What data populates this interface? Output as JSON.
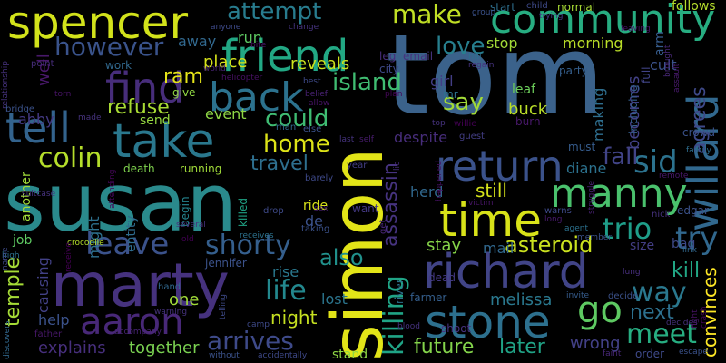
{
  "background": "#000000",
  "palette": {
    "yellow": "#d2e21b",
    "lime": "#a0da39",
    "green": "#4ac16d",
    "teal": "#1fa187",
    "cyan": "#277f8e",
    "blue": "#365c8d",
    "indigo": "#46327e",
    "purple": "#440154"
  },
  "words": [
    {
      "text": "tom",
      "color": "#3b628b"
    },
    {
      "text": "susan",
      "color": "#2a8a8c"
    },
    {
      "text": "simon",
      "color": "#e2e418"
    },
    {
      "text": "marty",
      "color": "#46327e"
    },
    {
      "text": "spencer",
      "color": "#d2e21b"
    },
    {
      "text": "community",
      "color": "#27ad81"
    },
    {
      "text": "friend",
      "color": "#22a884"
    },
    {
      "text": "take",
      "color": "#2a788e"
    },
    {
      "text": "back",
      "color": "#2c728e"
    },
    {
      "text": "richard",
      "color": "#414487"
    },
    {
      "text": "return",
      "color": "#3b528b"
    },
    {
      "text": "time",
      "color": "#d8e219"
    },
    {
      "text": "manny",
      "color": "#4ac16d"
    },
    {
      "text": "stone",
      "color": "#2d708e"
    },
    {
      "text": "willard",
      "color": "#31688e"
    },
    {
      "text": "find",
      "color": "#472d7b"
    },
    {
      "text": "tell",
      "color": "#33638d"
    },
    {
      "text": "aaron",
      "color": "#482878"
    },
    {
      "text": "go",
      "color": "#5ec962"
    },
    {
      "text": "leave",
      "color": "#3b528b"
    },
    {
      "text": "sid",
      "color": "#2c728e"
    },
    {
      "text": "try",
      "color": "#31688e"
    },
    {
      "text": "trio",
      "color": "#1f9e89"
    },
    {
      "text": "shorty",
      "color": "#355f8d"
    },
    {
      "text": "colin",
      "color": "#b5de2b"
    },
    {
      "text": "meet",
      "color": "#27ad81"
    },
    {
      "text": "way",
      "color": "#2a788e"
    },
    {
      "text": "killing",
      "color": "#20a486"
    },
    {
      "text": "life",
      "color": "#23888e"
    },
    {
      "text": "arrives",
      "color": "#3e4a89"
    },
    {
      "text": "however",
      "color": "#3a538b"
    },
    {
      "text": "attempt",
      "color": "#287c8e"
    },
    {
      "text": "make",
      "color": "#c0df25"
    },
    {
      "text": "home",
      "color": "#dde318"
    },
    {
      "text": "could",
      "color": "#3fbc73"
    },
    {
      "text": "fall",
      "color": "#414487"
    },
    {
      "text": "island",
      "color": "#40bd72"
    },
    {
      "text": "say",
      "color": "#a2da37"
    },
    {
      "text": "love",
      "color": "#277f8e"
    },
    {
      "text": "also",
      "color": "#21918c"
    },
    {
      "text": "asteroid",
      "color": "#cae11f"
    },
    {
      "text": "future",
      "color": "#84d44b"
    },
    {
      "text": "later",
      "color": "#20a386"
    },
    {
      "text": "next",
      "color": "#2d708e"
    },
    {
      "text": "temple",
      "color": "#a5db36"
    },
    {
      "text": "refuse",
      "color": "#a8db34"
    },
    {
      "text": "assassin",
      "color": "#46337f"
    },
    {
      "text": "kill",
      "color": "#22a785"
    },
    {
      "text": "agrees",
      "color": "#3e4989"
    },
    {
      "text": "becomes",
      "color": "#424186"
    },
    {
      "text": "travel",
      "color": "#2e6f8e"
    },
    {
      "text": "night",
      "color": "#c5e021"
    },
    {
      "text": "still",
      "color": "#d5e21a"
    },
    {
      "text": "melissa",
      "color": "#2a788e"
    },
    {
      "text": "explains",
      "color": "#472f7d"
    },
    {
      "text": "together",
      "color": "#7ad151"
    },
    {
      "text": "wrong",
      "color": "#424086"
    },
    {
      "text": "convinces",
      "color": "#fde725"
    },
    {
      "text": "ram",
      "color": "#e5e419"
    },
    {
      "text": "stop",
      "color": "#a2da37"
    },
    {
      "text": "morning",
      "color": "#bade28"
    },
    {
      "text": "reveals",
      "color": "#cde11d"
    },
    {
      "text": "place",
      "color": "#d5e21a"
    },
    {
      "text": "event",
      "color": "#8ed645"
    },
    {
      "text": "away",
      "color": "#31688e"
    },
    {
      "text": "well",
      "color": "#48186a"
    },
    {
      "text": "abby",
      "color": "#443983"
    },
    {
      "text": "run",
      "color": "#5ec962"
    },
    {
      "text": "herd",
      "color": "#31688e"
    },
    {
      "text": "stay",
      "color": "#86d549"
    },
    {
      "text": "mail",
      "color": "#31688e"
    },
    {
      "text": "rise",
      "color": "#2a788e"
    },
    {
      "text": "lost",
      "color": "#2b758e"
    },
    {
      "text": "one",
      "color": "#a0da39"
    },
    {
      "text": "help",
      "color": "#3b528b"
    },
    {
      "text": "diane",
      "color": "#2c728e"
    },
    {
      "text": "making",
      "color": "#2e6e8e"
    },
    {
      "text": "buck",
      "color": "#bade28"
    },
    {
      "text": "girl",
      "color": "#433e85"
    },
    {
      "text": "despite",
      "color": "#472d7b"
    },
    {
      "text": "cult",
      "color": "#3b528b"
    },
    {
      "text": "leaf",
      "color": "#6ccd5a"
    },
    {
      "text": "de",
      "color": "#3b528b"
    },
    {
      "text": "ride",
      "color": "#d8e219"
    },
    {
      "text": "jennifer",
      "color": "#3b528b"
    },
    {
      "text": "causing",
      "color": "#424186"
    },
    {
      "text": "might",
      "color": "#2d708e"
    },
    {
      "text": "killed",
      "color": "#20a486"
    },
    {
      "text": "death",
      "color": "#7fd34e"
    },
    {
      "text": "running",
      "color": "#a0da39"
    },
    {
      "text": "send",
      "color": "#95d840"
    },
    {
      "text": "give",
      "color": "#90d743"
    },
    {
      "text": "party",
      "color": "#355f8d"
    },
    {
      "text": "arm",
      "color": "#365c8d"
    },
    {
      "text": "follows",
      "color": "#b5de2b"
    },
    {
      "text": "normal",
      "color": "#a8db34"
    },
    {
      "text": "start",
      "color": "#2e6f8e"
    },
    {
      "text": "leg",
      "color": "#472f7d"
    },
    {
      "text": "email",
      "color": "#46337f"
    },
    {
      "text": "city",
      "color": "#3e4a89"
    },
    {
      "text": "mr",
      "color": "#2c728e"
    },
    {
      "text": "shoot",
      "color": "#46327e"
    },
    {
      "text": "farmer",
      "color": "#355f8d"
    },
    {
      "text": "river",
      "color": "#2c728e"
    },
    {
      "text": "dead",
      "color": "#443983"
    },
    {
      "text": "must",
      "color": "#365c8d"
    },
    {
      "text": "size",
      "color": "#433e85"
    },
    {
      "text": "bag",
      "color": "#3e4989"
    },
    {
      "text": "job",
      "color": "#5ec962"
    },
    {
      "text": "entity",
      "color": "#2f6c8e"
    },
    {
      "text": "begin",
      "color": "#25848e"
    },
    {
      "text": "stand",
      "color": "#8ed645"
    },
    {
      "text": "another",
      "color": "#a0da39"
    },
    {
      "text": "crowd",
      "color": "#3b528b"
    },
    {
      "text": "family",
      "color": "#2e6e8e"
    },
    {
      "text": "edgar",
      "color": "#3b528b"
    },
    {
      "text": "remote",
      "color": "#48186a"
    },
    {
      "text": "full",
      "color": "#414487"
    },
    {
      "text": "including",
      "color": "#355f8d"
    },
    {
      "text": "burn",
      "color": "#48186a"
    },
    {
      "text": "guest",
      "color": "#433e85"
    },
    {
      "text": "willie",
      "color": "#440154"
    },
    {
      "text": "top",
      "color": "#46327e"
    },
    {
      "text": "plan",
      "color": "#46075a"
    },
    {
      "text": "belief",
      "color": "#482173"
    },
    {
      "text": "allow",
      "color": "#481467"
    },
    {
      "text": "regain",
      "color": "#46337f"
    },
    {
      "text": "hill",
      "color": "#2e6f8e"
    },
    {
      "text": "group",
      "color": "#3b528b"
    },
    {
      "text": "child",
      "color": "#3e4a89"
    },
    {
      "text": "trying",
      "color": "#443983"
    },
    {
      "text": "leaving",
      "color": "#471164"
    },
    {
      "text": "brought",
      "color": "#482878"
    },
    {
      "text": "assault",
      "color": "#481a6c"
    },
    {
      "text": "work",
      "color": "#31688e"
    },
    {
      "text": "point",
      "color": "#472d7b"
    },
    {
      "text": "relationship",
      "color": "#46327e"
    },
    {
      "text": "torn",
      "color": "#481467"
    },
    {
      "text": "bridge",
      "color": "#3b528b"
    },
    {
      "text": "made",
      "color": "#46327e"
    },
    {
      "text": "world",
      "color": "#482475"
    },
    {
      "text": "best",
      "color": "#3e4a89"
    },
    {
      "text": "man",
      "color": "#31688e"
    },
    {
      "text": "else",
      "color": "#3b528b"
    },
    {
      "text": "sex",
      "color": "#481f70"
    },
    {
      "text": "drop",
      "color": "#3e4a89"
    },
    {
      "text": "receives",
      "color": "#2c728e"
    },
    {
      "text": "taking",
      "color": "#3b528b"
    },
    {
      "text": "want",
      "color": "#443983"
    },
    {
      "text": "self",
      "color": "#481c6e"
    },
    {
      "text": "last",
      "color": "#463480"
    },
    {
      "text": "year",
      "color": "#433e85"
    },
    {
      "text": "barely",
      "color": "#3e4989"
    },
    {
      "text": "victim",
      "color": "#481668"
    },
    {
      "text": "happened",
      "color": "#471063"
    },
    {
      "text": "get",
      "color": "#482677"
    },
    {
      "text": "lie",
      "color": "#472d7b"
    },
    {
      "text": "warns",
      "color": "#3e4a89"
    },
    {
      "text": "long",
      "color": "#481a6c"
    },
    {
      "text": "struggle",
      "color": "#482173"
    },
    {
      "text": "member",
      "color": "#3b528b"
    },
    {
      "text": "nick",
      "color": "#46327e"
    },
    {
      "text": "agent",
      "color": "#2c728e"
    },
    {
      "text": "link",
      "color": "#31688e"
    },
    {
      "text": "lung",
      "color": "#472f7d"
    },
    {
      "text": "invite",
      "color": "#365c8d"
    },
    {
      "text": "decide",
      "color": "#3b528b"
    },
    {
      "text": "decides",
      "color": "#46327e"
    },
    {
      "text": "order",
      "color": "#3e4989"
    },
    {
      "text": "escape",
      "color": "#3b528b"
    },
    {
      "text": "faint",
      "color": "#482878"
    },
    {
      "text": "crash",
      "color": "#46075a"
    },
    {
      "text": "fight",
      "color": "#481467"
    },
    {
      "text": "suitcase",
      "color": "#46327e"
    },
    {
      "text": "high",
      "color": "#2c728e"
    },
    {
      "text": "name",
      "color": "#3e4a89"
    },
    {
      "text": "several",
      "color": "#46327e"
    },
    {
      "text": "old",
      "color": "#440154"
    },
    {
      "text": "crocodile",
      "color": "#b5de2b"
    },
    {
      "text": "hand",
      "color": "#31688e"
    },
    {
      "text": "warning",
      "color": "#46327e"
    },
    {
      "text": "accompany",
      "color": "#482475"
    },
    {
      "text": "camp",
      "color": "#3e4a89"
    },
    {
      "text": "without",
      "color": "#3b528b"
    },
    {
      "text": "accidentally",
      "color": "#3e4989"
    },
    {
      "text": "father",
      "color": "#48186a"
    },
    {
      "text": "discovers",
      "color": "#31688e"
    },
    {
      "text": "telling",
      "color": "#3e4a89"
    },
    {
      "text": "blood",
      "color": "#46327e"
    },
    {
      "text": "bite",
      "color": "#481467"
    },
    {
      "text": "anyone",
      "color": "#3e4a89"
    },
    {
      "text": "change",
      "color": "#46337f"
    },
    {
      "text": "helicopter",
      "color": "#471164"
    },
    {
      "text": "attending",
      "color": "#46075a"
    },
    {
      "text": "receive",
      "color": "#440154"
    }
  ]
}
